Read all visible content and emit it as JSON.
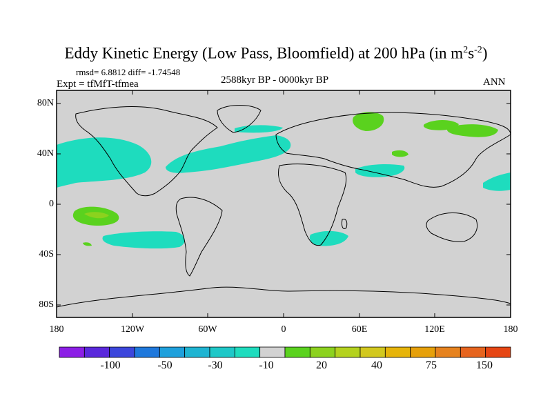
{
  "title": {
    "main": "Eddy Kinetic Energy (Low Pass, Bloomfield) at 200 hPa (in m",
    "sup1": "2",
    "mid": "s",
    "sup2": "-2",
    "end": ")"
  },
  "stats": "rmsd= 6.8812 diff= -1.74548",
  "expt": "Expt = tfMfT-tfmea",
  "period": "2588kyr BP - 0000kyr BP",
  "season": "ANN",
  "y_ticks": [
    "80N",
    "40N",
    "0",
    "40S",
    "80S"
  ],
  "x_ticks": [
    "180",
    "120W",
    "60W",
    "0",
    "60E",
    "120E",
    "180"
  ],
  "colorbar": {
    "colors": [
      "#8c1ee6",
      "#5a28dc",
      "#3c46dc",
      "#1e78dc",
      "#1ea0dc",
      "#1eb4d2",
      "#1ec8c8",
      "#1edcbe",
      "#d2d2d2",
      "#5ad21e",
      "#8cd21e",
      "#b4d21e",
      "#d2c81e",
      "#e6b40a",
      "#e6a00a",
      "#e6821e",
      "#e6641e",
      "#e64614"
    ],
    "labels": [
      "-100",
      "-50",
      "-30",
      "-10",
      "20",
      "40",
      "75",
      "150"
    ]
  },
  "map_colors": {
    "background": "#d2d2d2",
    "cyan": "#1edcbe",
    "green": "#5ad21e",
    "lightgreen": "#8cd21e"
  }
}
